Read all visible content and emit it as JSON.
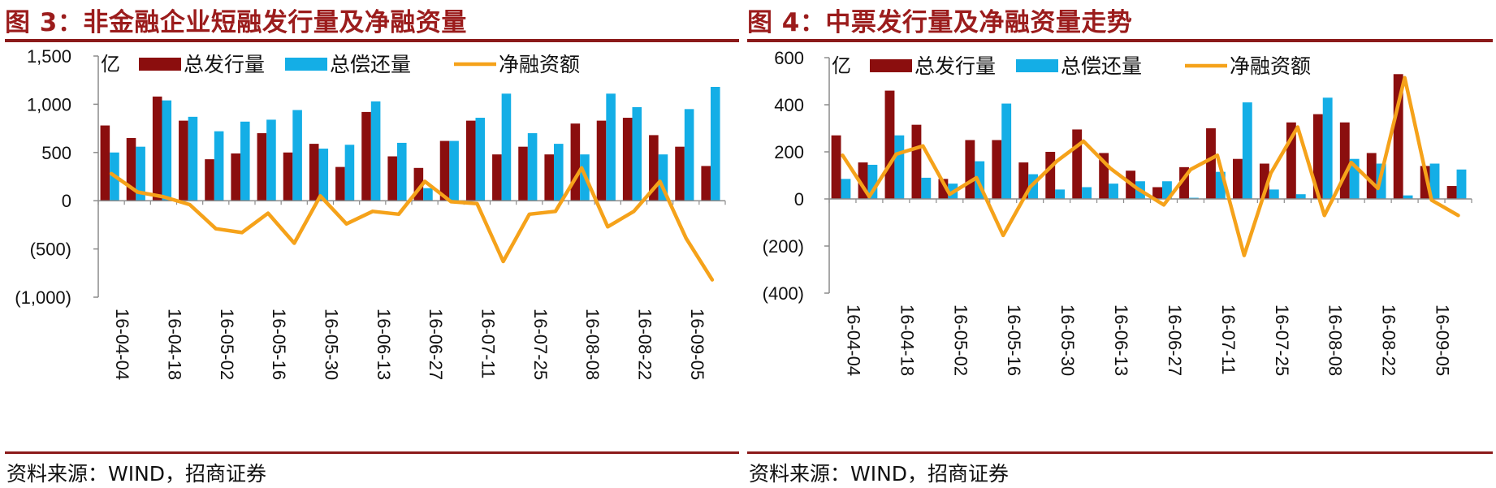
{
  "colors": {
    "issuance": "#8b0e0e",
    "repayment": "#14aee6",
    "net": "#f5a21a",
    "title": "#9b1c1c",
    "rule": "#8b1a1a"
  },
  "charts": [
    {
      "title": "图 3：非金融企业短融发行量及净融资量",
      "unit": "亿",
      "source": "资料来源：WIND，招商证券",
      "chart_data": {
        "type": "bar",
        "ylim": [
          -1000,
          1500
        ],
        "yticks": [
          -1000,
          -500,
          0,
          500,
          1000,
          1500
        ],
        "ytick_labels": [
          "(1,000)",
          "(500)",
          "0",
          "500",
          "1,000",
          "1,500"
        ],
        "categories": [
          "16-04-04",
          "16-04-11",
          "16-04-18",
          "16-04-25",
          "16-05-02",
          "16-05-09",
          "16-05-16",
          "16-05-23",
          "16-05-30",
          "16-06-06",
          "16-06-13",
          "16-06-20",
          "16-06-27",
          "16-07-04",
          "16-07-11",
          "16-07-18",
          "16-07-25",
          "16-08-01",
          "16-08-08",
          "16-08-15",
          "16-08-22",
          "16-08-29",
          "16-09-05",
          "16-09-12"
        ],
        "xtick_labels": [
          "16-04-04",
          "16-04-18",
          "16-05-02",
          "16-05-16",
          "16-05-30",
          "16-06-13",
          "16-06-27",
          "16-07-11",
          "16-07-25",
          "16-08-08",
          "16-08-22",
          "16-09-05"
        ],
        "series": [
          {
            "name": "总发行量",
            "kind": "bar",
            "values": [
              780,
              650,
              1080,
              830,
              430,
              490,
              700,
              500,
              590,
              350,
              920,
              460,
              340,
              620,
              830,
              480,
              560,
              480,
              800,
              830,
              860,
              680,
              560,
              360
            ]
          },
          {
            "name": "总偿还量",
            "kind": "bar",
            "values": [
              500,
              560,
              1040,
              870,
              720,
              820,
              840,
              940,
              540,
              580,
              1030,
              600,
              130,
              620,
              860,
              1110,
              700,
              590,
              480,
              1110,
              970,
              480,
              950,
              1180
            ]
          },
          {
            "name": "净融资额",
            "kind": "line",
            "values": [
              280,
              90,
              40,
              -40,
              -290,
              -330,
              -130,
              -440,
              50,
              -240,
              -110,
              -140,
              200,
              -10,
              -30,
              -630,
              -140,
              -110,
              340,
              -270,
              -110,
              200,
              -390,
              -820
            ]
          }
        ],
        "legend": "top"
      }
    },
    {
      "title": "图 4：中票发行量及净融资量走势",
      "unit": "亿",
      "source": "资料来源：WIND，招商证券",
      "chart_data": {
        "type": "bar",
        "ylim": [
          -400,
          600
        ],
        "yticks": [
          -400,
          -200,
          0,
          200,
          400,
          600
        ],
        "ytick_labels": [
          "(400)",
          "(200)",
          "0",
          "200",
          "400",
          "600"
        ],
        "categories": [
          "16-04-04",
          "16-04-11",
          "16-04-18",
          "16-04-25",
          "16-05-02",
          "16-05-09",
          "16-05-16",
          "16-05-23",
          "16-05-30",
          "16-06-06",
          "16-06-13",
          "16-06-20",
          "16-06-27",
          "16-07-04",
          "16-07-11",
          "16-07-18",
          "16-07-25",
          "16-08-01",
          "16-08-08",
          "16-08-15",
          "16-08-22",
          "16-08-29",
          "16-09-05",
          "16-09-12"
        ],
        "xtick_labels": [
          "16-04-04",
          "16-04-18",
          "16-05-02",
          "16-05-16",
          "16-05-30",
          "16-06-13",
          "16-06-27",
          "16-07-11",
          "16-07-25",
          "16-08-08",
          "16-08-22",
          "16-09-05"
        ],
        "series": [
          {
            "name": "总发行量",
            "kind": "bar",
            "values": [
              270,
              155,
              460,
              315,
              85,
              250,
              250,
              155,
              200,
              295,
              195,
              120,
              50,
              135,
              300,
              170,
              150,
              325,
              360,
              325,
              195,
              530,
              140,
              55
            ]
          },
          {
            "name": "总偿还量",
            "kind": "bar",
            "values": [
              85,
              145,
              270,
              90,
              65,
              160,
              405,
              105,
              40,
              50,
              65,
              75,
              75,
              5,
              115,
              410,
              40,
              20,
              430,
              170,
              150,
              15,
              150,
              125
            ]
          },
          {
            "name": "净融资额",
            "kind": "line",
            "values": [
              185,
              10,
              190,
              225,
              20,
              90,
              -155,
              50,
              160,
              245,
              130,
              45,
              -25,
              125,
              185,
              -240,
              110,
              305,
              -70,
              155,
              45,
              515,
              -5,
              -70
            ]
          }
        ],
        "legend": "top"
      }
    }
  ]
}
